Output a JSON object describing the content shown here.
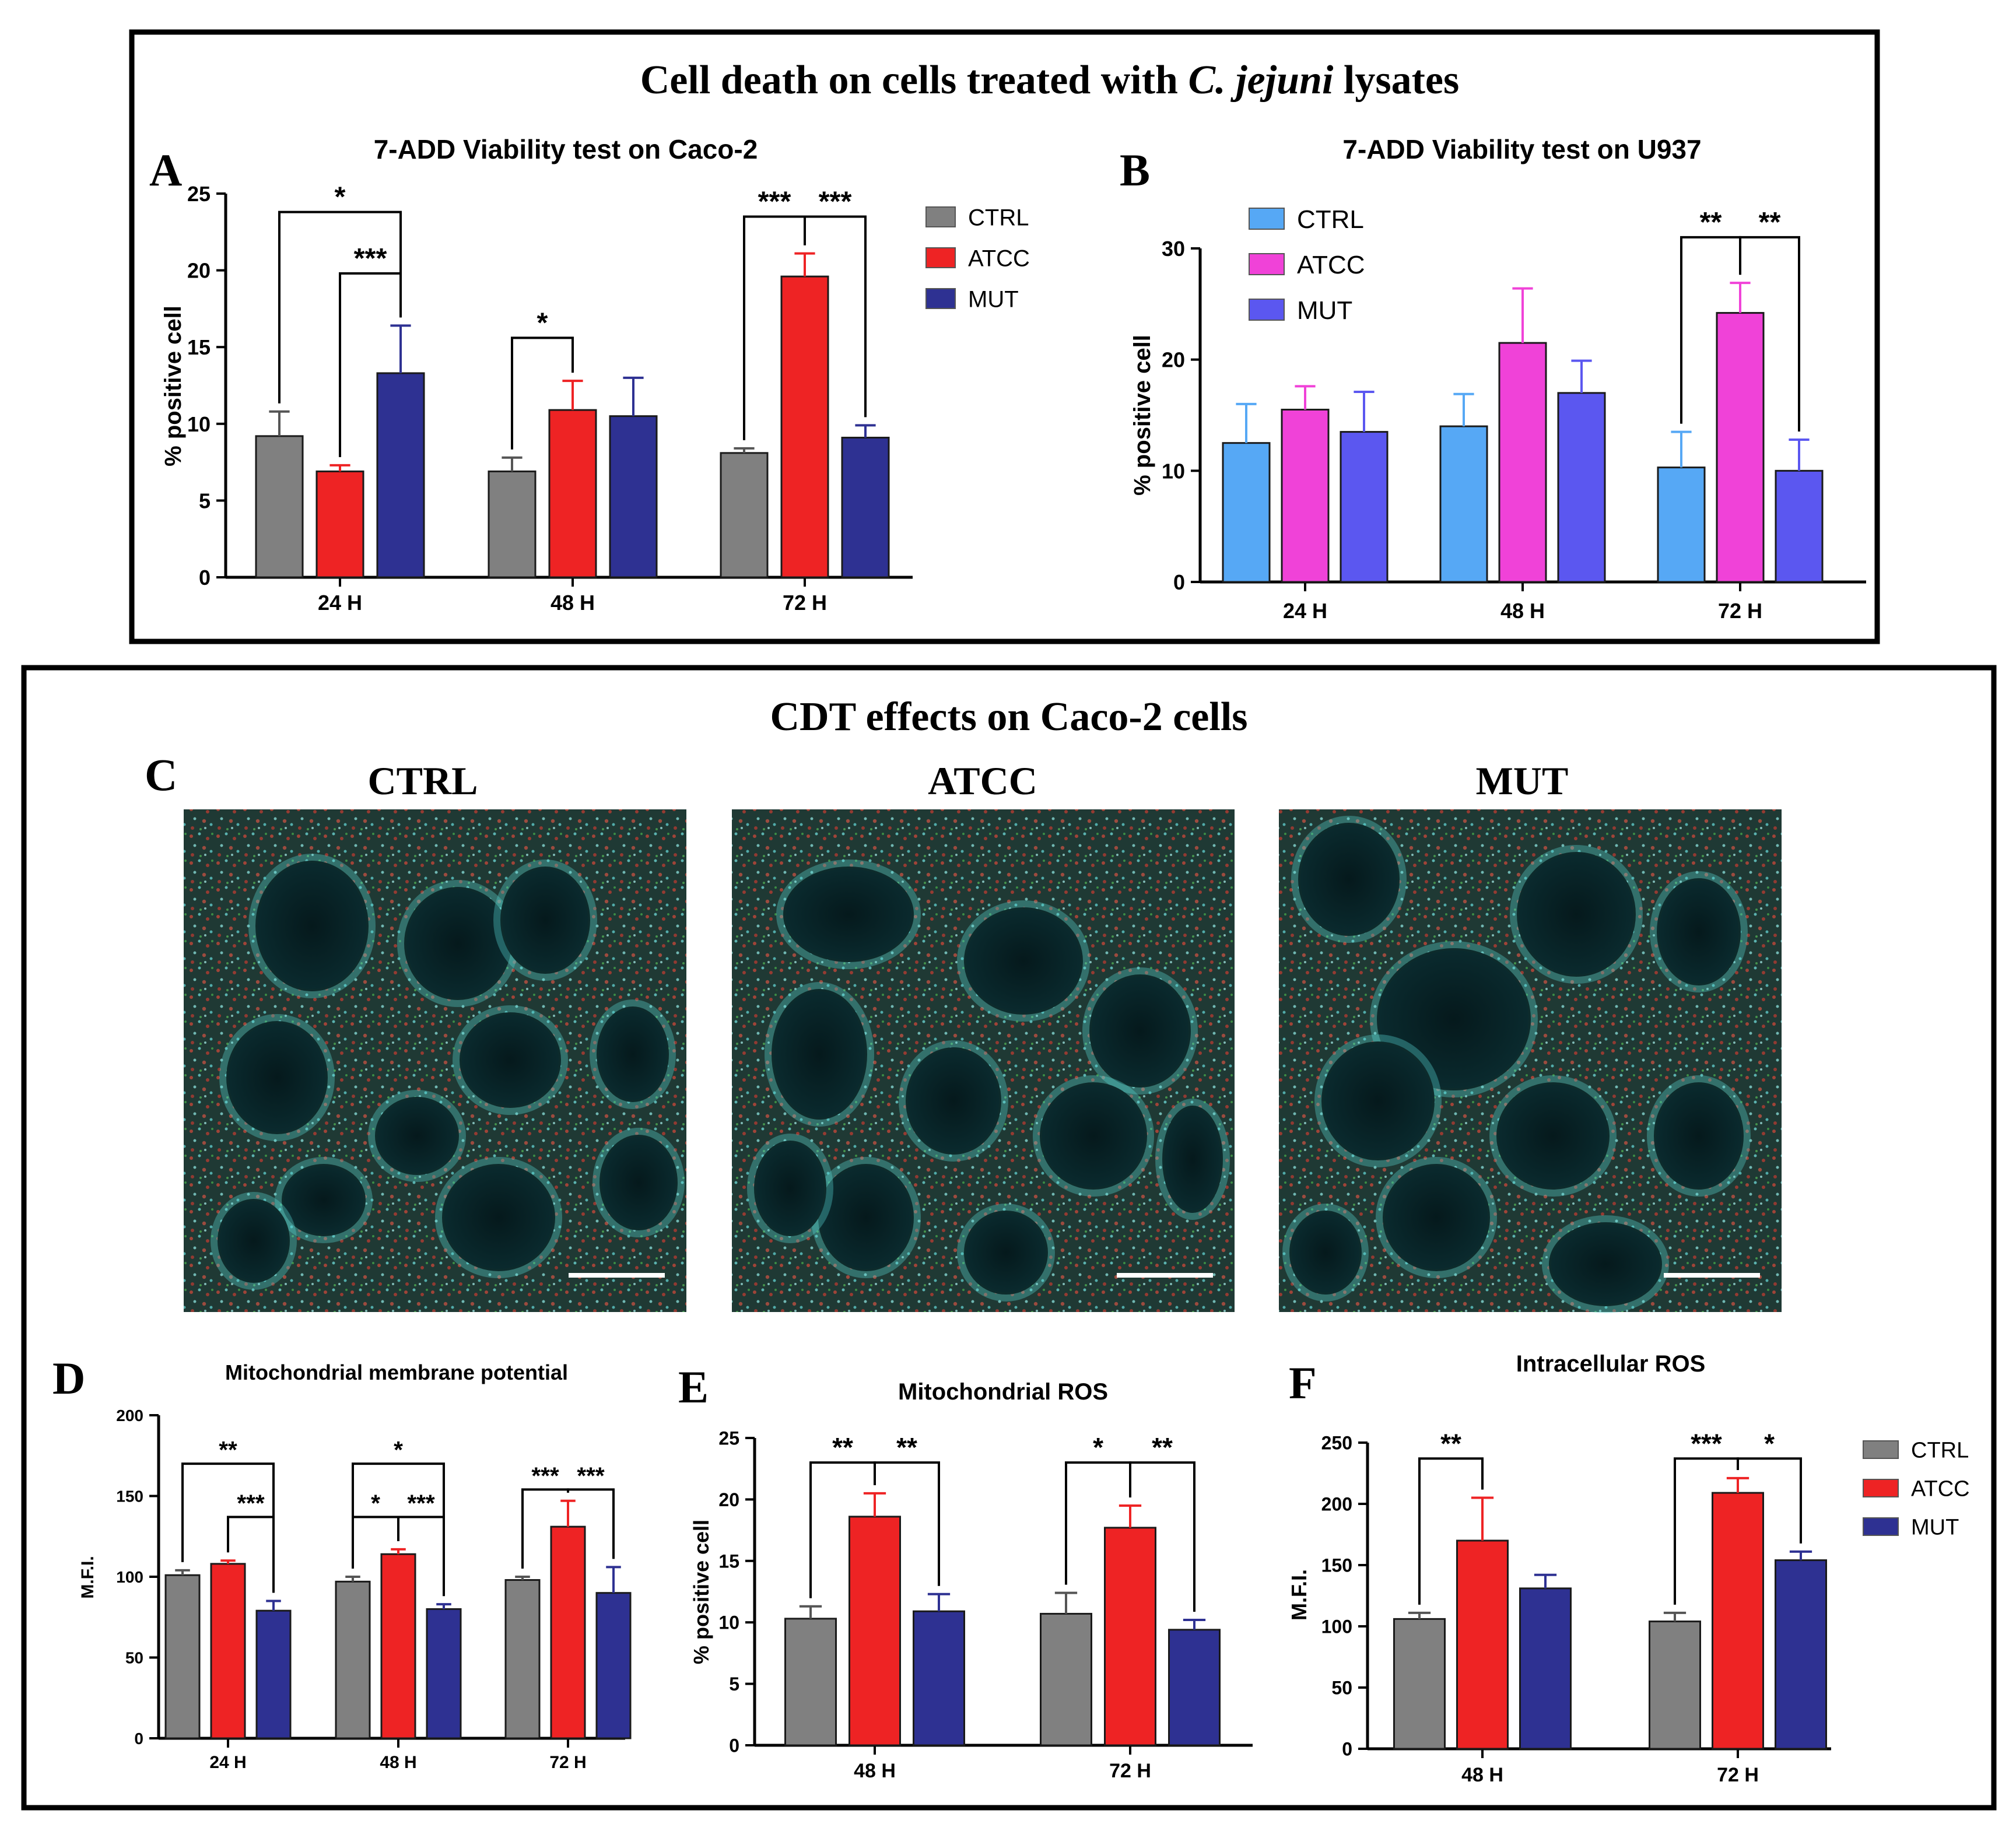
{
  "top_section": {
    "title_pre": "Cell death on cells treated with ",
    "title_italic": "C. jejuni",
    "title_post": " lysates"
  },
  "bottom_section": {
    "title": "CDT effects on Caco-2 cells"
  },
  "micrographs": {
    "panel_letter": "C",
    "items": [
      {
        "label": "CTRL"
      },
      {
        "label": "ATCC"
      },
      {
        "label": "MUT"
      }
    ]
  },
  "colors": {
    "ctrl_gray": "#808080",
    "atcc_red": "#ee2324",
    "mut_navy": "#2e3192",
    "ctrl_blue": "#56a8f5",
    "atcc_pink": "#f042d8",
    "mut_purple": "#5b57f0"
  },
  "chart_data": [
    {
      "panel": "A",
      "type": "bar",
      "title": "7-ADD Viability test on Caco-2",
      "ylabel": "% positive cell",
      "xlabel": "",
      "ylim": [
        0,
        25
      ],
      "yticks": [
        "0",
        "5",
        "10",
        "15",
        "20",
        "25"
      ],
      "categories": [
        "24 H",
        "48 H",
        "72 H"
      ],
      "legend_position": "right",
      "series": [
        {
          "name": "CTRL",
          "color": "#808080",
          "values": [
            9.2,
            6.9,
            8.1
          ],
          "errors": [
            1.6,
            0.9,
            0.3
          ]
        },
        {
          "name": "ATCC",
          "color": "#ee2324",
          "values": [
            6.9,
            10.9,
            19.6
          ],
          "errors": [
            0.4,
            1.9,
            1.5
          ]
        },
        {
          "name": "MUT",
          "color": "#2e3192",
          "values": [
            13.3,
            10.5,
            9.1
          ],
          "errors": [
            3.1,
            2.5,
            0.8
          ]
        }
      ],
      "significance": [
        {
          "group": 0,
          "from": 0,
          "to": 2,
          "label": "*",
          "y": 23.8
        },
        {
          "group": 0,
          "from": 1,
          "to": 2,
          "label": "***",
          "y": 19.8
        },
        {
          "group": 1,
          "from": 0,
          "to": 1,
          "label": "*",
          "y": 15.6
        },
        {
          "group": 2,
          "from": 0,
          "to": 1,
          "label": "***",
          "y": 23.5
        },
        {
          "group": 2,
          "from": 1,
          "to": 2,
          "label": "***",
          "y": 23.5
        }
      ]
    },
    {
      "panel": "B",
      "type": "bar",
      "title": "7-ADD Viability test on U937",
      "ylabel": "% positive cell",
      "xlabel": "",
      "ylim": [
        0,
        30
      ],
      "yticks": [
        "0",
        "10",
        "20",
        "30"
      ],
      "categories": [
        "24 H",
        "48 H",
        "72 H"
      ],
      "legend_position": "top-left",
      "series": [
        {
          "name": "CTRL",
          "color": "#56a8f5",
          "values": [
            12.5,
            14.0,
            10.3
          ],
          "errors": [
            3.5,
            2.9,
            3.2
          ]
        },
        {
          "name": "ATCC",
          "color": "#f042d8",
          "values": [
            15.5,
            21.5,
            24.2
          ],
          "errors": [
            2.1,
            4.9,
            2.7
          ]
        },
        {
          "name": "MUT",
          "color": "#5b57f0",
          "values": [
            13.5,
            17.0,
            10.0
          ],
          "errors": [
            3.6,
            2.9,
            2.8
          ]
        }
      ],
      "significance": [
        {
          "group": 2,
          "from": 0,
          "to": 1,
          "label": "**",
          "y": 31
        },
        {
          "group": 2,
          "from": 1,
          "to": 2,
          "label": "**",
          "y": 31
        }
      ]
    },
    {
      "panel": "D",
      "type": "bar",
      "title": "Mitochondrial membrane potential",
      "ylabel": "M.F.I.",
      "xlabel": "",
      "ylim": [
        0,
        200
      ],
      "yticks": [
        "0",
        "50",
        "100",
        "150",
        "200"
      ],
      "categories": [
        "24 H",
        "48 H",
        "72 H"
      ],
      "series": [
        {
          "name": "CTRL",
          "color": "#808080",
          "values": [
            101,
            97,
            98
          ],
          "errors": [
            3,
            3,
            2
          ]
        },
        {
          "name": "ATCC",
          "color": "#ee2324",
          "values": [
            108,
            114,
            131
          ],
          "errors": [
            2,
            3,
            16
          ]
        },
        {
          "name": "MUT",
          "color": "#2e3192",
          "values": [
            79,
            80,
            90
          ],
          "errors": [
            6,
            3,
            16
          ]
        }
      ],
      "significance": [
        {
          "group": 0,
          "from": 0,
          "to": 2,
          "label": "**",
          "y": 170
        },
        {
          "group": 0,
          "from": 1,
          "to": 2,
          "label": "***",
          "y": 137
        },
        {
          "group": 1,
          "from": 0,
          "to": 2,
          "label": "*",
          "y": 170
        },
        {
          "group": 1,
          "from": 0,
          "to": 1,
          "label": "*",
          "y": 137
        },
        {
          "group": 1,
          "from": 1,
          "to": 2,
          "label": "***",
          "y": 137
        },
        {
          "group": 2,
          "from": 0,
          "to": 1,
          "label": "***",
          "y": 154
        },
        {
          "group": 2,
          "from": 1,
          "to": 2,
          "label": "***",
          "y": 154
        }
      ]
    },
    {
      "panel": "E",
      "type": "bar",
      "title": "Mitochondrial ROS",
      "ylabel": "% positive cell",
      "xlabel": "",
      "ylim": [
        0,
        25
      ],
      "yticks": [
        "0",
        "5",
        "10",
        "15",
        "20",
        "25"
      ],
      "categories": [
        "48 H",
        "72 H"
      ],
      "series": [
        {
          "name": "CTRL",
          "color": "#808080",
          "values": [
            10.3,
            10.7
          ],
          "errors": [
            1.0,
            1.7
          ]
        },
        {
          "name": "ATCC",
          "color": "#ee2324",
          "values": [
            18.6,
            17.7
          ],
          "errors": [
            1.9,
            1.8
          ]
        },
        {
          "name": "MUT",
          "color": "#2e3192",
          "values": [
            10.9,
            9.4
          ],
          "errors": [
            1.4,
            0.8
          ]
        }
      ],
      "significance": [
        {
          "group": 0,
          "from": 0,
          "to": 1,
          "label": "**",
          "y": 23
        },
        {
          "group": 0,
          "from": 1,
          "to": 2,
          "label": "**",
          "y": 23
        },
        {
          "group": 1,
          "from": 0,
          "to": 1,
          "label": "*",
          "y": 23
        },
        {
          "group": 1,
          "from": 1,
          "to": 2,
          "label": "**",
          "y": 23
        }
      ]
    },
    {
      "panel": "F",
      "type": "bar",
      "title": "Intracellular ROS",
      "ylabel": "M.F.I.",
      "xlabel": "",
      "ylim": [
        0,
        250
      ],
      "yticks": [
        "0",
        "50",
        "100",
        "150",
        "200",
        "250"
      ],
      "categories": [
        "48 H",
        "72 H"
      ],
      "legend_position": "right",
      "series": [
        {
          "name": "CTRL",
          "color": "#808080",
          "values": [
            106,
            104
          ],
          "errors": [
            5,
            7
          ]
        },
        {
          "name": "ATCC",
          "color": "#ee2324",
          "values": [
            170,
            209
          ],
          "errors": [
            35,
            12
          ]
        },
        {
          "name": "MUT",
          "color": "#2e3192",
          "values": [
            131,
            154
          ],
          "errors": [
            11,
            7
          ]
        }
      ],
      "significance": [
        {
          "group": 0,
          "from": 0,
          "to": 1,
          "label": "**",
          "y": 237
        },
        {
          "group": 1,
          "from": 0,
          "to": 1,
          "label": "***",
          "y": 237
        },
        {
          "group": 1,
          "from": 1,
          "to": 2,
          "label": "*",
          "y": 237
        }
      ]
    }
  ]
}
